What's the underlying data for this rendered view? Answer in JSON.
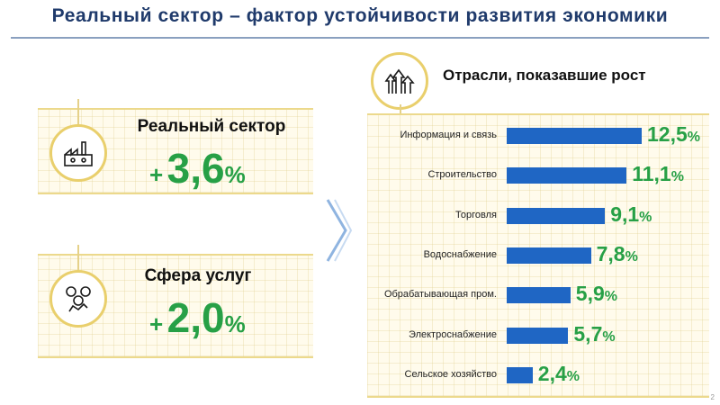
{
  "title": "Реальный сектор – фактор устойчивости развития экономики",
  "left_cards": [
    {
      "label": "Реальный сектор",
      "sign": "+",
      "value": "3,6",
      "unit": "%"
    },
    {
      "label": "Сфера услуг",
      "sign": "+",
      "value": "2,0",
      "unit": "%"
    }
  ],
  "right_title": "Отрасли, показавшие рост",
  "chart_data": {
    "type": "bar",
    "orientation": "horizontal",
    "title": "Отрасли, показавшие рост",
    "categories": [
      "Информация и связь",
      "Строительство",
      "Торговля",
      "Водоснабжение",
      "Обрабатывающая пром.",
      "Электроснабжение",
      "Сельское хозяйство"
    ],
    "values": [
      12.5,
      11.1,
      9.1,
      7.8,
      5.9,
      5.7,
      2.4
    ],
    "value_labels": [
      "12,5",
      "11,1",
      "9,1",
      "7,8",
      "5,9",
      "5,7",
      "2,4"
    ],
    "unit": "%",
    "xlim": [
      0,
      12.5
    ],
    "grid": false,
    "bar_color": "#1f66c4",
    "value_color": "#27a046"
  },
  "page_number": "2",
  "colors": {
    "title": "#1f3a6b",
    "accent_green": "#27a046",
    "panel_gold": "#e9cf6c"
  },
  "icons": [
    "industry-icon",
    "services-icon",
    "growth-chart-icon",
    "chevron-right-icon"
  ]
}
